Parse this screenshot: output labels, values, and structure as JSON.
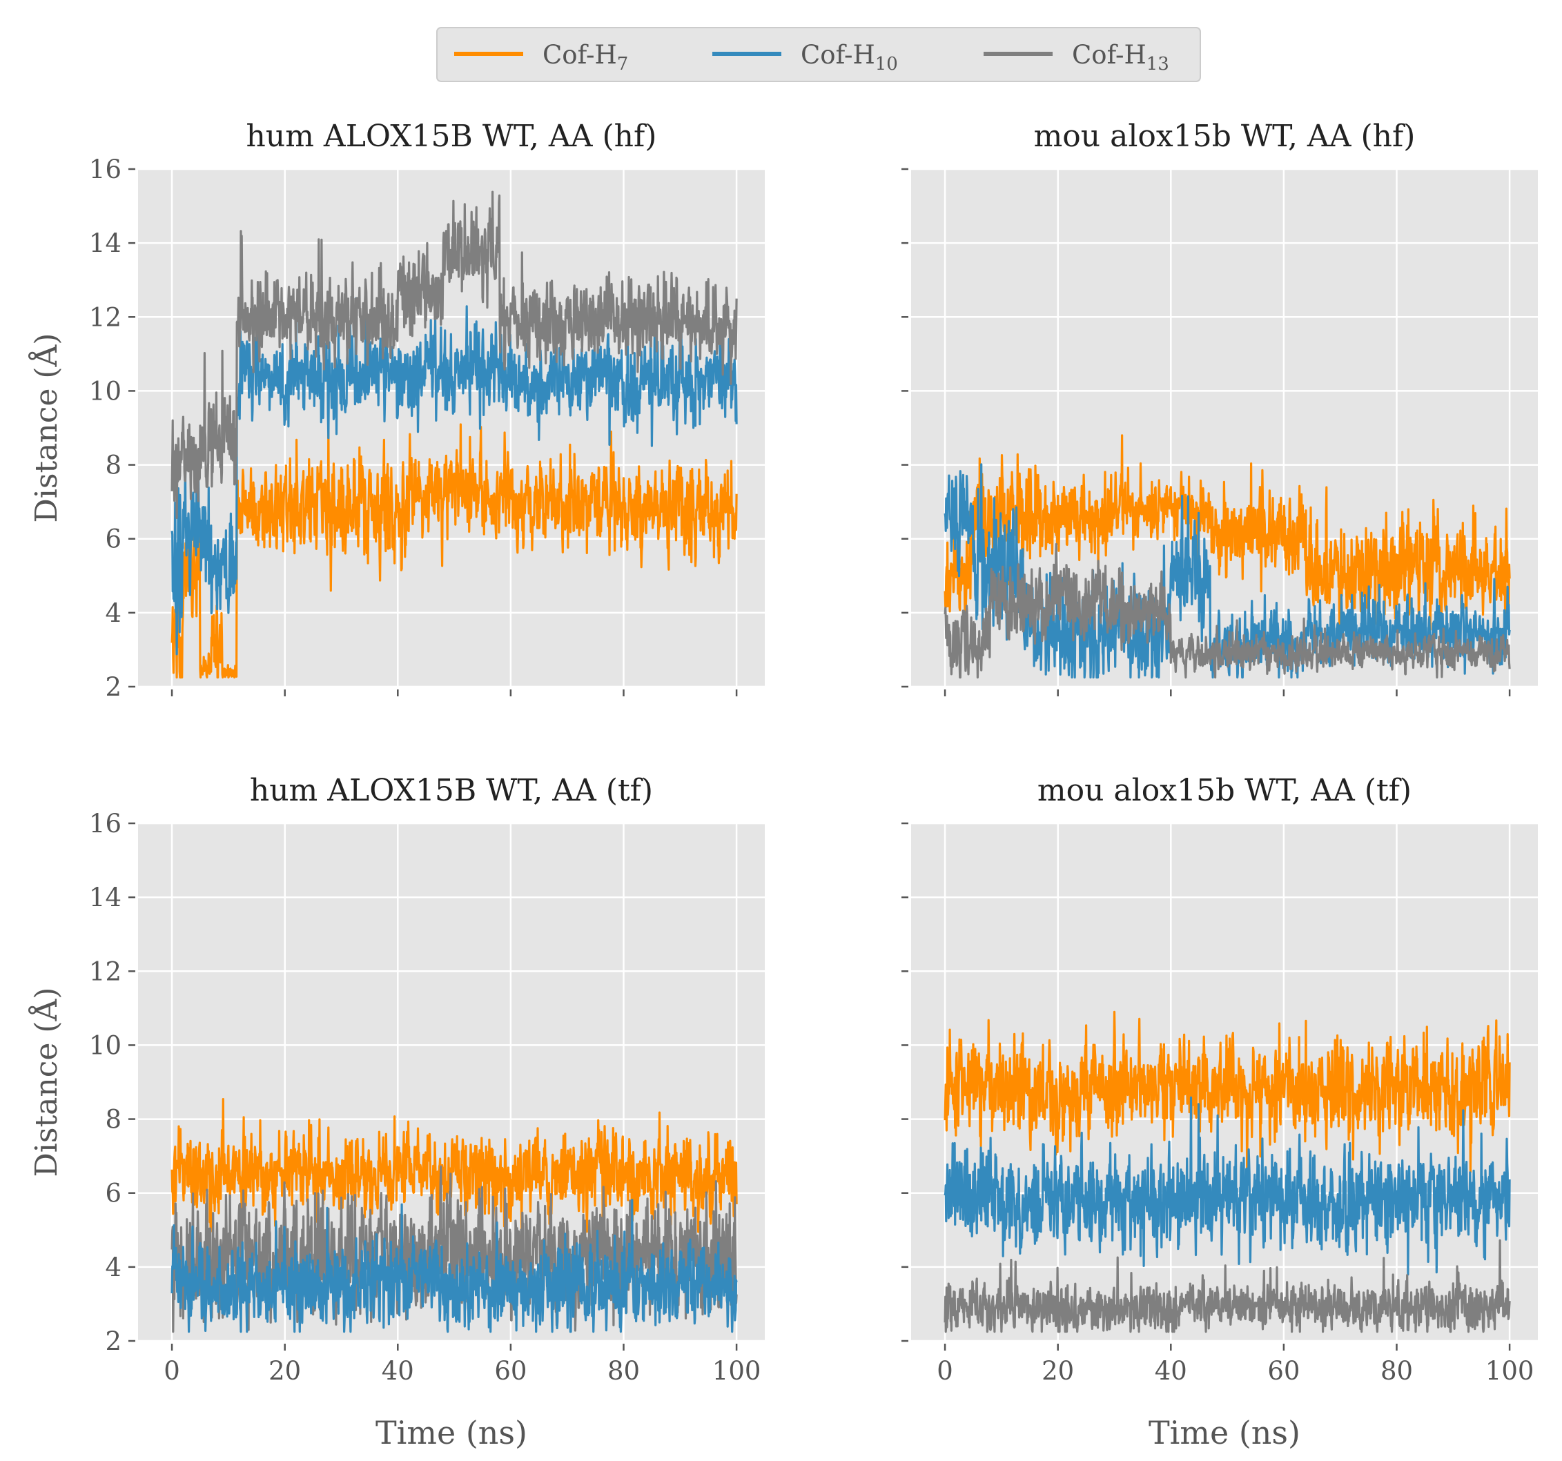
{
  "chart_data": {
    "type": "line",
    "legend": {
      "placement": "top-center",
      "entries": [
        {
          "base": "Cof-H",
          "sub": "7",
          "color": "#ff8c00"
        },
        {
          "base": "Cof-H",
          "sub": "10",
          "color": "#348abd"
        },
        {
          "base": "Cof-H",
          "sub": "13",
          "color": "#7f7f7f"
        }
      ]
    },
    "xlabel": "Time (ns)",
    "ylabel": "Distance (Å)",
    "xlim": [
      -6,
      105
    ],
    "ylim": [
      2,
      16
    ],
    "xticks": [
      0,
      20,
      40,
      60,
      80,
      100
    ],
    "yticks": [
      2,
      4,
      6,
      8,
      10,
      12,
      14,
      16
    ],
    "grid": true,
    "sharey": true,
    "sharex": true,
    "panels": [
      {
        "title": "hum ALOX15B WT, AA (hf)",
        "series": [
          {
            "name": "Cof-H7",
            "color": "#ff8c00",
            "segments": [
              [
                0,
                2.9,
                0.9,
                0.8
              ],
              [
                2,
                5.0,
                0.7,
                0.8
              ],
              [
                5,
                2.6,
                0.2,
                0.2
              ],
              [
                7,
                3.2,
                0.5,
                0.5
              ],
              [
                9,
                2.4,
                0.1,
                0.1
              ],
              [
                11.5,
                6.8,
                0.6,
                1.0
              ],
              [
                35,
                6.6,
                0.6,
                0.9
              ],
              [
                42,
                7.3,
                0.5,
                0.9
              ],
              [
                60,
                7.0,
                0.5,
                0.8
              ],
              [
                80,
                6.8,
                0.5,
                0.8
              ],
              [
                100,
                7.0,
                0.4,
                0.6
              ]
            ]
          },
          {
            "name": "Cof-H10",
            "color": "#348abd",
            "segments": [
              [
                0,
                5.4,
                0.9,
                1.4
              ],
              [
                2,
                6.3,
                0.6,
                0.9
              ],
              [
                7,
                5.2,
                0.6,
                0.8
              ],
              [
                11.5,
                10.4,
                0.5,
                1.0
              ],
              [
                45,
                10.6,
                0.5,
                1.0
              ],
              [
                60,
                10.2,
                0.5,
                0.9
              ],
              [
                100,
                10.0,
                0.5,
                0.8
              ]
            ]
          },
          {
            "name": "Cof-H13",
            "color": "#7f7f7f",
            "segments": [
              [
                0,
                8.1,
                0.6,
                1.0
              ],
              [
                5,
                8.7,
                0.6,
                1.2
              ],
              [
                11.5,
                11.9,
                0.5,
                1.2
              ],
              [
                40,
                12.6,
                0.5,
                1.3
              ],
              [
                48,
                13.7,
                0.5,
                1.2
              ],
              [
                58,
                11.9,
                0.5,
                1.2
              ],
              [
                100,
                12.0,
                0.5,
                1.4
              ]
            ]
          }
        ]
      },
      {
        "title": "mou alox15b WT, AA (hf)",
        "series": [
          {
            "name": "Cof-H7",
            "color": "#ff8c00",
            "segments": [
              [
                0,
                4.8,
                0.5,
                0.6
              ],
              [
                5,
                6.6,
                0.5,
                1.0
              ],
              [
                30,
                6.8,
                0.4,
                0.7
              ],
              [
                47,
                6.1,
                0.5,
                0.9
              ],
              [
                64,
                5.1,
                0.6,
                1.0
              ],
              [
                100,
                4.9,
                0.6,
                1.0
              ]
            ]
          },
          {
            "name": "Cof-H10",
            "color": "#348abd",
            "segments": [
              [
                0,
                6.6,
                0.6,
                0.8
              ],
              [
                5,
                5.0,
                0.8,
                1.5
              ],
              [
                14,
                3.5,
                0.6,
                1.0
              ],
              [
                40,
                5.0,
                0.6,
                0.9
              ],
              [
                47,
                3.0,
                0.4,
                0.9
              ],
              [
                64,
                3.5,
                0.4,
                0.6
              ],
              [
                100,
                3.5,
                0.4,
                0.6
              ]
            ]
          },
          {
            "name": "Cof-H13",
            "color": "#7f7f7f",
            "segments": [
              [
                0,
                3.2,
                0.4,
                0.6
              ],
              [
                8,
                4.3,
                0.5,
                0.8
              ],
              [
                30,
                4.0,
                0.4,
                0.7
              ],
              [
                40,
                2.9,
                0.2,
                0.5
              ],
              [
                100,
                2.8,
                0.2,
                0.5
              ]
            ]
          }
        ]
      },
      {
        "title": "hum ALOX15B WT, AA (tf)",
        "series": [
          {
            "name": "Cof-H7",
            "color": "#ff8c00",
            "segments": [
              [
                0,
                6.5,
                0.5,
                0.7
              ],
              [
                100,
                6.6,
                0.5,
                0.7
              ]
            ]
          },
          {
            "name": "Cof-H13",
            "color": "#7f7f7f",
            "segments": [
              [
                0,
                4.3,
                0.7,
                1.0
              ],
              [
                100,
                4.3,
                0.7,
                1.0
              ]
            ]
          },
          {
            "name": "Cof-H10",
            "color": "#348abd",
            "segments": [
              [
                0,
                3.5,
                0.5,
                0.8
              ],
              [
                100,
                3.4,
                0.5,
                0.8
              ]
            ]
          }
        ]
      },
      {
        "title": "mou alox15b WT, AA (tf)",
        "series": [
          {
            "name": "Cof-H7",
            "color": "#ff8c00",
            "segments": [
              [
                0,
                8.8,
                0.6,
                1.0
              ],
              [
                100,
                8.9,
                0.6,
                1.0
              ]
            ]
          },
          {
            "name": "Cof-H10",
            "color": "#348abd",
            "segments": [
              [
                0,
                5.8,
                0.6,
                1.0
              ],
              [
                100,
                5.9,
                0.6,
                1.0
              ]
            ]
          },
          {
            "name": "Cof-H13",
            "color": "#7f7f7f",
            "segments": [
              [
                0,
                2.9,
                0.3,
                0.7
              ],
              [
                100,
                2.9,
                0.3,
                0.7
              ]
            ]
          }
        ]
      }
    ]
  }
}
